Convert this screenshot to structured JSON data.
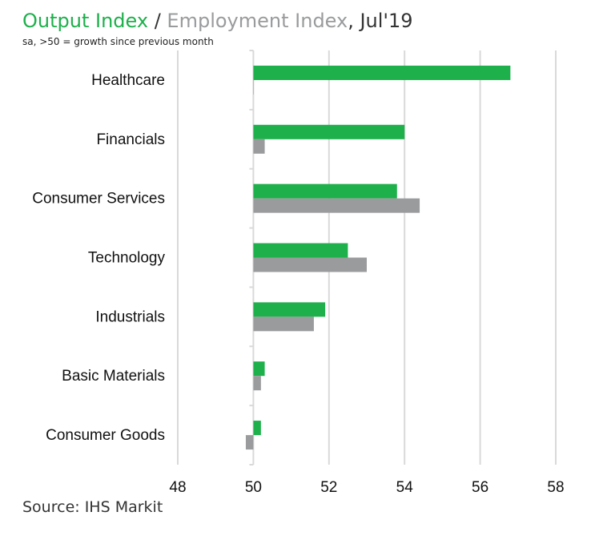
{
  "header": {
    "title_series1": "Output Index",
    "title_sep": " / ",
    "title_series2": "Employment Index",
    "title_suffix": ", Jul'19",
    "subtitle": "sa, >50 = growth since previous month"
  },
  "footer": {
    "source": "Source: IHS Markit"
  },
  "colors": {
    "output": "#1db04b",
    "employment": "#9a9b9d",
    "grid": "#d9d9d9"
  },
  "chart_data": {
    "type": "bar",
    "orientation": "horizontal",
    "title": "Output Index / Employment Index, Jul'19",
    "subtitle": "sa, >50 = growth since previous month",
    "categories": [
      "Healthcare",
      "Financials",
      "Consumer Services",
      "Technology",
      "Industrials",
      "Basic Materials",
      "Consumer Goods"
    ],
    "series": [
      {
        "name": "Output Index",
        "color": "#1db04b",
        "values": [
          56.8,
          54.0,
          53.8,
          52.5,
          51.9,
          50.3,
          50.2
        ]
      },
      {
        "name": "Employment Index",
        "color": "#9a9b9d",
        "values": [
          50.0,
          50.3,
          54.4,
          53.0,
          51.6,
          50.2,
          49.8
        ]
      }
    ],
    "xlim": [
      48,
      58
    ],
    "xticks": [
      "48",
      "50",
      "52",
      "54",
      "56",
      "58"
    ],
    "baseline": 50,
    "grid": true,
    "legend": "in title"
  }
}
